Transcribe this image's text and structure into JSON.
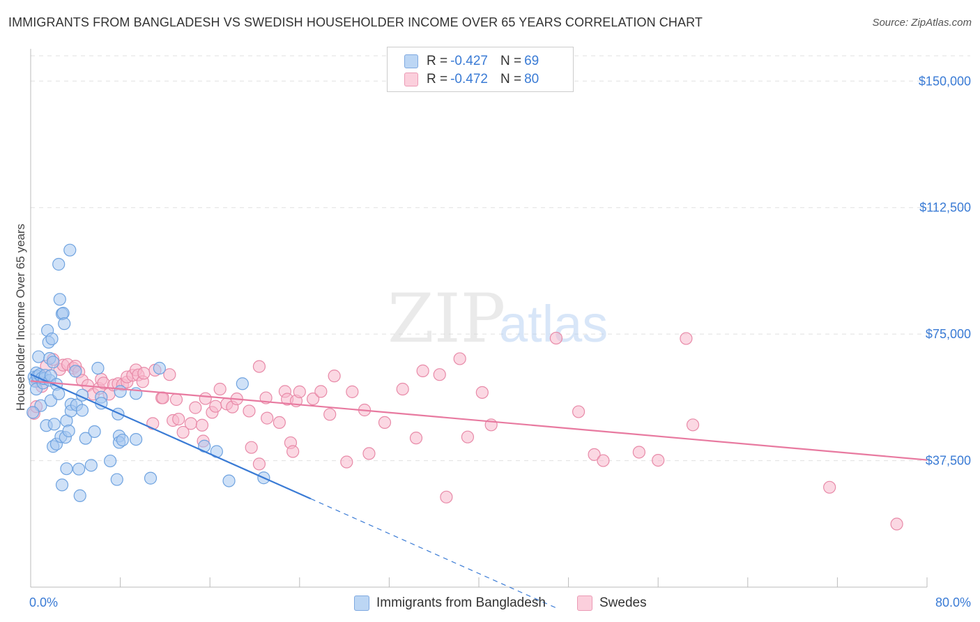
{
  "title": "IMMIGRANTS FROM BANGLADESH VS SWEDISH HOUSEHOLDER INCOME OVER 65 YEARS CORRELATION CHART",
  "source": "Source: ZipAtlas.com",
  "watermark": {
    "zip": "ZIP",
    "atlas": "atlas"
  },
  "legend": {
    "rows": [
      {
        "r_label": "R = ",
        "r_value": "-0.427",
        "n_label": "N = ",
        "n_value": "69",
        "color": "#a8c8f0"
      },
      {
        "r_label": "R = ",
        "r_value": "-0.472",
        "n_label": "N = ",
        "n_value": "80",
        "color": "#f8b8cc"
      }
    ]
  },
  "bottom_legend": [
    {
      "label": "Immigrants from Bangladesh",
      "color": "#a8c8f0"
    },
    {
      "label": "Swedes",
      "color": "#f8b8cc"
    }
  ],
  "chart_data": {
    "type": "scatter",
    "title": "IMMIGRANTS FROM BANGLADESH VS SWEDISH HOUSEHOLDER INCOME OVER 65 YEARS CORRELATION CHART",
    "xlabel": "",
    "ylabel": "Householder Income Over 65 years",
    "xlim": [
      0,
      80
    ],
    "ylim": [
      0,
      157500
    ],
    "x_tick_labels": [
      "0.0%",
      "80.0%"
    ],
    "y_ticks": [
      {
        "value": 37500,
        "label": "$37,500"
      },
      {
        "value": 75000,
        "label": "$75,000"
      },
      {
        "value": 112500,
        "label": "$112,500"
      },
      {
        "value": 150000,
        "label": "$150,000"
      }
    ],
    "grid": true,
    "legend_position": "top-center",
    "series": [
      {
        "name": "Immigrants from Bangladesh",
        "color": "#6fa3e0",
        "fill": "#a8c8f0",
        "points": [
          [
            0.3,
            62300
          ],
          [
            0.4,
            61000
          ],
          [
            0.5,
            63500
          ],
          [
            0.5,
            58700
          ],
          [
            0.6,
            62500
          ],
          [
            0.7,
            68300
          ],
          [
            0.8,
            63000
          ],
          [
            0.9,
            53800
          ],
          [
            1.0,
            62000
          ],
          [
            1.1,
            60500
          ],
          [
            1.2,
            61800
          ],
          [
            1.3,
            62800
          ],
          [
            1.4,
            47900
          ],
          [
            1.5,
            76100
          ],
          [
            1.6,
            72600
          ],
          [
            1.7,
            61300
          ],
          [
            1.7,
            67800
          ],
          [
            1.8,
            62700
          ],
          [
            1.8,
            55300
          ],
          [
            1.9,
            73600
          ],
          [
            2.0,
            66700
          ],
          [
            2.0,
            41700
          ],
          [
            2.1,
            48300
          ],
          [
            2.3,
            60100
          ],
          [
            2.3,
            42400
          ],
          [
            2.5,
            57300
          ],
          [
            2.5,
            95700
          ],
          [
            2.6,
            85300
          ],
          [
            2.7,
            44600
          ],
          [
            2.8,
            81000
          ],
          [
            2.8,
            30300
          ],
          [
            2.9,
            81200
          ],
          [
            3.0,
            78100
          ],
          [
            3.1,
            44400
          ],
          [
            3.2,
            35100
          ],
          [
            3.2,
            49300
          ],
          [
            3.4,
            46300
          ],
          [
            3.5,
            99900
          ],
          [
            3.6,
            54200
          ],
          [
            3.6,
            52200
          ],
          [
            4.0,
            64000
          ],
          [
            4.1,
            54000
          ],
          [
            4.3,
            35000
          ],
          [
            4.4,
            27100
          ],
          [
            4.6,
            56900
          ],
          [
            4.6,
            52400
          ],
          [
            4.9,
            44100
          ],
          [
            5.4,
            36100
          ],
          [
            5.7,
            46100
          ],
          [
            6.0,
            64900
          ],
          [
            6.3,
            56300
          ],
          [
            6.3,
            54500
          ],
          [
            7.1,
            37400
          ],
          [
            7.7,
            31900
          ],
          [
            7.8,
            51300
          ],
          [
            7.9,
            44800
          ],
          [
            7.9,
            42900
          ],
          [
            8.0,
            58000
          ],
          [
            8.2,
            43600
          ],
          [
            9.4,
            43800
          ],
          [
            9.4,
            57400
          ],
          [
            10.7,
            32300
          ],
          [
            11.5,
            64900
          ],
          [
            15.5,
            41800
          ],
          [
            16.6,
            40200
          ],
          [
            17.7,
            31500
          ],
          [
            18.9,
            60300
          ],
          [
            20.8,
            32400
          ],
          [
            0.2,
            51800
          ]
        ]
      },
      {
        "name": "Swedes",
        "color": "#e88aa8",
        "fill": "#f8b8cc",
        "points": [
          [
            0.3,
            51500
          ],
          [
            0.5,
            53500
          ],
          [
            0.6,
            61000
          ],
          [
            1.0,
            59500
          ],
          [
            1.4,
            65500
          ],
          [
            2.0,
            67500
          ],
          [
            2.6,
            64500
          ],
          [
            2.9,
            65800
          ],
          [
            3.3,
            66000
          ],
          [
            3.8,
            64900
          ],
          [
            4.0,
            65500
          ],
          [
            4.3,
            63800
          ],
          [
            4.6,
            61300
          ],
          [
            5.1,
            59800
          ],
          [
            5.6,
            57200
          ],
          [
            6.1,
            58900
          ],
          [
            6.3,
            61600
          ],
          [
            6.5,
            60500
          ],
          [
            7.0,
            57200
          ],
          [
            7.4,
            59900
          ],
          [
            7.8,
            60300
          ],
          [
            8.2,
            60000
          ],
          [
            8.6,
            60800
          ],
          [
            8.6,
            62300
          ],
          [
            9.1,
            62800
          ],
          [
            9.4,
            64400
          ],
          [
            9.6,
            62900
          ],
          [
            10.0,
            60900
          ],
          [
            10.1,
            63400
          ],
          [
            10.9,
            48500
          ],
          [
            11.1,
            64300
          ],
          [
            11.7,
            56100
          ],
          [
            11.8,
            56100
          ],
          [
            12.4,
            63000
          ],
          [
            12.7,
            49400
          ],
          [
            13.0,
            55600
          ],
          [
            13.2,
            49800
          ],
          [
            13.6,
            45900
          ],
          [
            14.3,
            48500
          ],
          [
            14.7,
            53200
          ],
          [
            15.3,
            48000
          ],
          [
            15.4,
            43300
          ],
          [
            15.6,
            55900
          ],
          [
            16.2,
            51800
          ],
          [
            16.5,
            53600
          ],
          [
            16.9,
            58700
          ],
          [
            17.5,
            54300
          ],
          [
            18.0,
            53400
          ],
          [
            18.4,
            55800
          ],
          [
            19.5,
            52200
          ],
          [
            19.7,
            41400
          ],
          [
            20.4,
            36500
          ],
          [
            20.4,
            65400
          ],
          [
            21.0,
            56100
          ],
          [
            21.1,
            50100
          ],
          [
            22.2,
            48800
          ],
          [
            22.7,
            58000
          ],
          [
            22.9,
            55700
          ],
          [
            23.2,
            42800
          ],
          [
            23.4,
            40200
          ],
          [
            23.7,
            55200
          ],
          [
            24.0,
            57900
          ],
          [
            25.2,
            55800
          ],
          [
            25.9,
            58000
          ],
          [
            26.7,
            51200
          ],
          [
            27.1,
            62600
          ],
          [
            28.2,
            37100
          ],
          [
            28.7,
            57900
          ],
          [
            29.8,
            52500
          ],
          [
            30.2,
            39600
          ],
          [
            31.6,
            48800
          ],
          [
            33.2,
            58700
          ],
          [
            34.4,
            44200
          ],
          [
            37.1,
            26700
          ],
          [
            38.3,
            67700
          ],
          [
            40.3,
            57700
          ],
          [
            46.9,
            73800
          ],
          [
            48.9,
            52000
          ],
          [
            50.3,
            39300
          ],
          [
            51.1,
            37500
          ]
        ]
      }
    ],
    "extra_points": {
      "Swedes": [
        [
          41.1,
          48100
        ],
        [
          35.0,
          64100
        ],
        [
          36.5,
          63000
        ],
        [
          39.0,
          44500
        ],
        [
          58.5,
          73700
        ],
        [
          59.1,
          48100
        ],
        [
          71.3,
          29600
        ],
        [
          77.3,
          18700
        ],
        [
          54.3,
          40000
        ],
        [
          56.0,
          37600
        ]
      ]
    },
    "trend_lines": [
      {
        "series": "Immigrants from Bangladesh",
        "color": "#3a7bd5",
        "x0": 0.0,
        "y0": 63100,
        "x1": 25.0,
        "y1": 26200,
        "dashed_to_x": 47.0,
        "dashed_to_y": -6300
      },
      {
        "series": "Swedes",
        "color": "#e87aa0",
        "x0": 0.0,
        "y0": 61100,
        "x1": 80.0,
        "y1": 37700
      }
    ]
  }
}
